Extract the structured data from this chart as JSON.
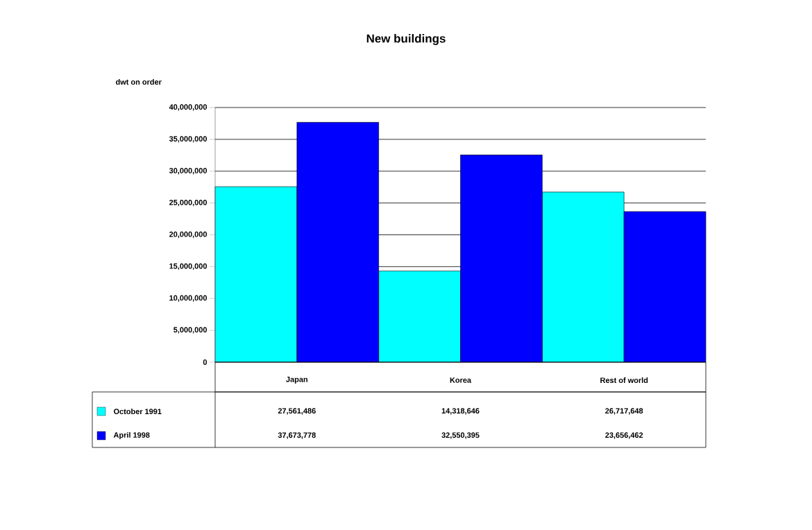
{
  "chart_data": {
    "type": "bar",
    "title": "New buildings",
    "ylabel": "dwt on order",
    "categories": [
      "Japan",
      "Korea",
      "Rest of world"
    ],
    "series": [
      {
        "name": "October 1991",
        "color": "#00ffff",
        "values": [
          27561486,
          14318646,
          26717648
        ],
        "value_labels": [
          "27,561,486",
          "14,318,646",
          "26,717,648"
        ]
      },
      {
        "name": "April 1998",
        "color": "#0000ff",
        "values": [
          37673778,
          32550395,
          23656462
        ],
        "value_labels": [
          "37,673,778",
          "32,550,395",
          "23,656,462"
        ]
      }
    ],
    "ylim": [
      0,
      40000000
    ],
    "yticks": [
      {
        "value": 0,
        "label": "0"
      },
      {
        "value": 5000000,
        "label": "5,000,000"
      },
      {
        "value": 10000000,
        "label": "10,000,000"
      },
      {
        "value": 15000000,
        "label": "15,000,000"
      },
      {
        "value": 20000000,
        "label": "20,000,000"
      },
      {
        "value": 25000000,
        "label": "25,000,000"
      },
      {
        "value": 30000000,
        "label": "30,000,000"
      },
      {
        "value": 35000000,
        "label": "35,000,000"
      },
      {
        "value": 40000000,
        "label": "40,000,000"
      }
    ],
    "grid": "y",
    "legend": "bottom left",
    "data_labels": true
  }
}
